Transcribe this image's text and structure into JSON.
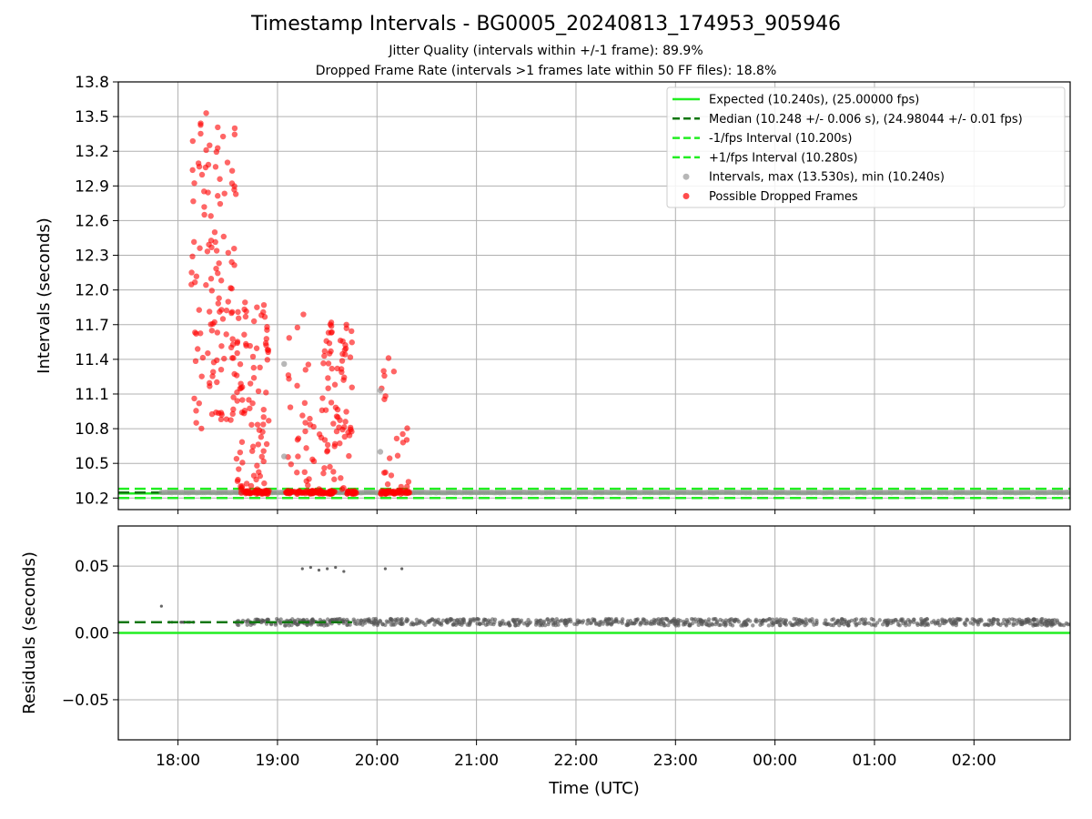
{
  "header": {
    "title": "Timestamp Intervals - BG0005_20240813_174953_905946",
    "subtitle_1": "Jitter Quality (intervals within +/-1 frame): 89.9%",
    "subtitle_2": "Dropped Frame Rate (intervals >1 frames late within 50 FF files): 18.8%"
  },
  "colors": {
    "expected": "#22ee22",
    "median": "#117711",
    "fps_interval": "#22ee22",
    "intervals_points": "#999999",
    "dropped_points": "#ff0000",
    "residual_points": "#555555",
    "grid": "#b0b0b0"
  },
  "chart_data": [
    {
      "type": "scatter",
      "panel": "top",
      "ylabel": "Intervals (seconds)",
      "xlabel": "",
      "ylim": [
        10.1,
        13.8
      ],
      "x_range_hours": [
        "17:24",
        "02:58"
      ],
      "grid": true,
      "legend_position": "top-right",
      "yticks": [
        "10.2",
        "10.5",
        "10.8",
        "11.1",
        "11.4",
        "11.7",
        "12.0",
        "12.3",
        "12.6",
        "12.9",
        "13.2",
        "13.5",
        "13.8"
      ],
      "lines": [
        {
          "name": "Expected (10.240s), (25.00000 fps)",
          "y": 10.24,
          "style": "solid"
        },
        {
          "name": "Median (10.248 +/- 0.006 s), (24.98044 +/- 0.01 fps)",
          "y": 10.248,
          "style": "dashed"
        },
        {
          "name": "-1/fps Interval (10.200s)",
          "y": 10.2,
          "style": "dashed"
        },
        {
          "name": "+1/fps Interval (10.280s)",
          "y": 10.28,
          "style": "dashed"
        }
      ],
      "scatter_series": [
        {
          "name": "Intervals, max (13.530s), min (10.240s)",
          "marker": "gray-circle"
        },
        {
          "name": "Possible Dropped Frames",
          "marker": "red-circle"
        }
      ],
      "outlier_clusters": [
        {
          "start": "18:08",
          "end": "18:35",
          "ymin": 10.8,
          "ymax": 13.53
        },
        {
          "start": "18:35",
          "end": "18:55",
          "ymin": 10.25,
          "ymax": 11.9
        },
        {
          "start": "19:05",
          "end": "19:22",
          "ymin": 10.25,
          "ymax": 11.85
        },
        {
          "start": "19:25",
          "end": "19:45",
          "ymin": 10.25,
          "ymax": 11.85
        },
        {
          "start": "20:02",
          "end": "20:20",
          "ymin": 10.25,
          "ymax": 11.45
        }
      ],
      "gray_outliers": [
        {
          "time": "19:04",
          "y": 11.36
        },
        {
          "time": "19:04",
          "y": 10.56
        },
        {
          "time": "20:02",
          "y": 10.6
        },
        {
          "time": "20:02",
          "y": 11.13
        }
      ],
      "baseline_y": 10.248,
      "baseline_start": "17:50",
      "baseline_end": "02:58"
    },
    {
      "type": "scatter",
      "panel": "bottom",
      "ylabel": "Residuals (seconds)",
      "xlabel": "Time (UTC)",
      "ylim": [
        -0.08,
        0.08
      ],
      "yticks": [
        "−0.05",
        "0.00",
        "0.05"
      ],
      "xticks": [
        "18:00",
        "19:00",
        "20:00",
        "21:00",
        "22:00",
        "23:00",
        "00:00",
        "01:00",
        "02:00"
      ],
      "grid": true,
      "lines": [
        {
          "name": "expected",
          "y": 0.0,
          "style": "solid"
        },
        {
          "name": "median",
          "y": 0.008,
          "style": "dashed"
        }
      ],
      "residual_baseline": 0.008,
      "residual_outliers": [
        {
          "time": "17:50",
          "y": 0.02
        },
        {
          "time": "19:15",
          "y": 0.048
        },
        {
          "time": "19:20",
          "y": 0.049
        },
        {
          "time": "19:25",
          "y": 0.047
        },
        {
          "time": "19:30",
          "y": 0.048
        },
        {
          "time": "19:35",
          "y": 0.049
        },
        {
          "time": "19:40",
          "y": 0.046
        },
        {
          "time": "20:05",
          "y": 0.048
        },
        {
          "time": "20:15",
          "y": 0.048
        }
      ]
    }
  ]
}
